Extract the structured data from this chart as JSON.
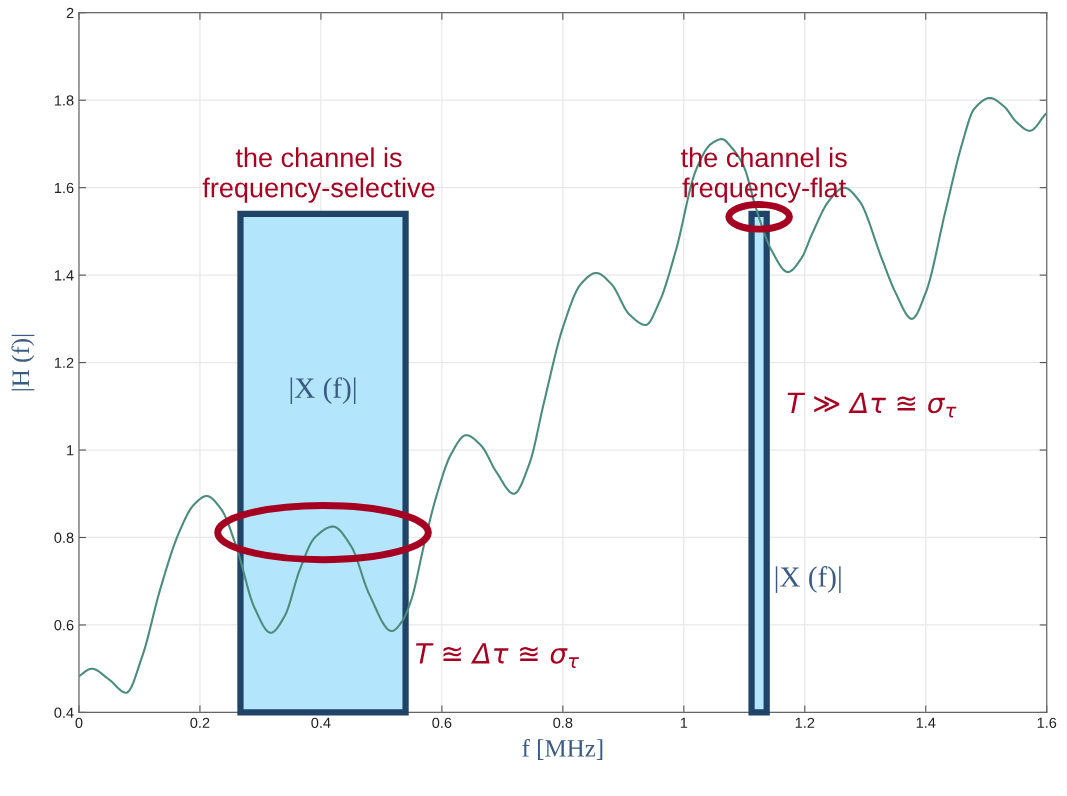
{
  "chart_data": {
    "type": "line",
    "xlabel": "f [MHz]",
    "ylabel": "|H (f)|",
    "x": [
      0,
      0.021,
      0.05,
      0.078,
      0.105,
      0.134,
      0.165,
      0.19,
      0.211,
      0.235,
      0.26,
      0.29,
      0.317,
      0.34,
      0.365,
      0.39,
      0.42,
      0.45,
      0.48,
      0.517,
      0.535,
      0.55,
      0.57,
      0.59,
      0.615,
      0.64,
      0.665,
      0.69,
      0.719,
      0.745,
      0.769,
      0.8,
      0.83,
      0.855,
      0.88,
      0.91,
      0.937,
      0.96,
      0.987,
      1.02,
      1.045,
      1.063,
      1.08,
      1.099,
      1.12,
      1.145,
      1.172,
      1.195,
      1.212,
      1.24,
      1.265,
      1.29,
      1.327,
      1.35,
      1.377,
      1.4,
      1.433,
      1.46,
      1.48,
      1.506,
      1.53,
      1.55,
      1.572,
      1.598
    ],
    "series": [
      {
        "color": "#4c8c7c",
        "values": [
          0.483,
          0.5,
          0.475,
          0.445,
          0.53,
          0.68,
          0.81,
          0.875,
          0.895,
          0.865,
          0.78,
          0.64,
          0.582,
          0.62,
          0.726,
          0.8,
          0.825,
          0.78,
          0.67,
          0.586,
          0.61,
          0.66,
          0.78,
          0.89,
          0.99,
          1.034,
          1.01,
          0.95,
          0.9,
          0.97,
          1.11,
          1.28,
          1.38,
          1.405,
          1.38,
          1.31,
          1.286,
          1.34,
          1.457,
          1.64,
          1.7,
          1.711,
          1.69,
          1.649,
          1.55,
          1.457,
          1.407,
          1.44,
          1.494,
          1.57,
          1.6,
          1.57,
          1.439,
          1.36,
          1.3,
          1.36,
          1.549,
          1.7,
          1.78,
          1.805,
          1.785,
          1.75,
          1.73,
          1.768
        ]
      }
    ],
    "xlim": [
      0,
      1.6
    ],
    "ylim": [
      0.4,
      2
    ],
    "xticks": [
      0,
      0.2,
      0.4,
      0.6,
      0.8,
      1,
      1.2,
      1.4,
      1.6
    ],
    "yticks": [
      0.4,
      0.6,
      0.8,
      1,
      1.2,
      1.4,
      1.6,
      1.8,
      2
    ],
    "grid": true,
    "bands": [
      {
        "axis": "x",
        "from": 0.267,
        "to": 0.54,
        "label": "|X (f)|",
        "color": "#b3e5fc"
      },
      {
        "axis": "x",
        "from": 1.112,
        "to": 1.137,
        "label": "|X (f)|",
        "color": "#b3e5fc"
      }
    ],
    "annotations": [
      "the channel is\nfrequency-selective",
      "the channel is\nfrequency-flat",
      "T ≊ Δτ ≊ σ$_{τ}$",
      "T ≫ Δτ ≊ σ$_{τ}$"
    ]
  }
}
